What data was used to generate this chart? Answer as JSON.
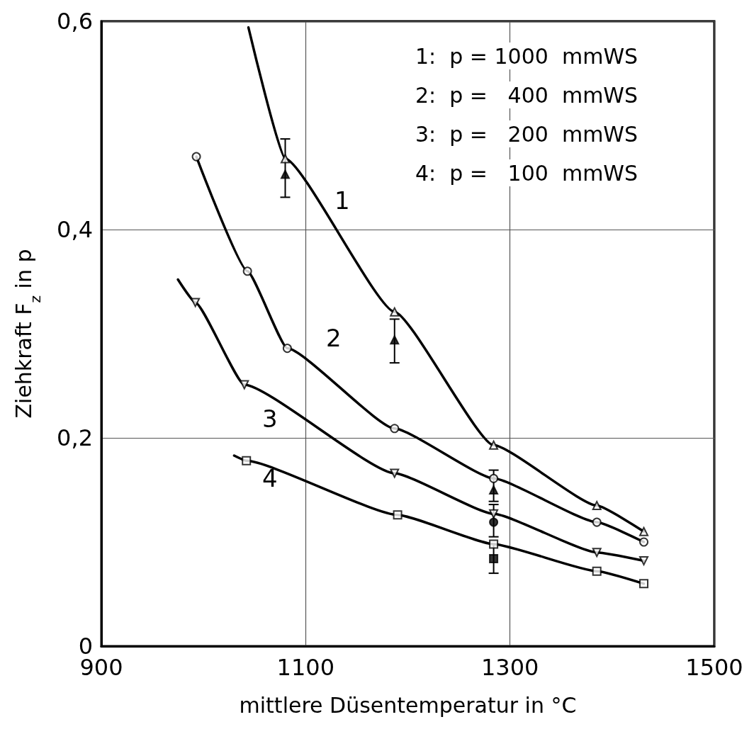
{
  "chart_data": {
    "type": "scatter",
    "xlabel": "mittlere Düsentemperatur in °C",
    "ylabel": "Ziehkraft F$_{z}$ in p",
    "xlim": [
      900,
      1500
    ],
    "xticks": [
      900,
      1100,
      1300,
      1500
    ],
    "ylim": [
      0,
      0.6
    ],
    "yticks": [
      0,
      {
        "value": 0.2,
        "label": "0,2"
      },
      {
        "value": 0.4,
        "label": "0,4"
      },
      {
        "value": 0.6,
        "label": "0,6"
      }
    ],
    "grid": true,
    "series": [
      {
        "type": "line",
        "marker": "none",
        "color": "#000000",
        "x": [
          1044,
          1080,
          1187,
          1284,
          1385,
          1431
        ],
        "values": [
          0.594,
          0.468,
          0.321,
          0.193,
          0.135,
          0.11
        ]
      },
      {
        "type": "line",
        "marker": "none",
        "color": "#000000",
        "x": [
          993,
          1043,
          1082,
          1187,
          1284,
          1385,
          1431
        ],
        "values": [
          0.47,
          0.36,
          0.286,
          0.209,
          0.161,
          0.119,
          0.1
        ]
      },
      {
        "type": "line",
        "marker": "none",
        "color": "#000000",
        "x": [
          975,
          992,
          1040,
          1187,
          1284,
          1385,
          1431
        ],
        "values": [
          0.352,
          0.33,
          0.251,
          0.166,
          0.127,
          0.09,
          0.082
        ]
      },
      {
        "type": "line",
        "marker": "none",
        "color": "#000000",
        "x": [
          1030,
          1042,
          1190,
          1284,
          1385,
          1431
        ],
        "values": [
          0.183,
          0.178,
          0.126,
          0.098,
          0.072,
          0.06
        ]
      },
      {
        "marker": "triangle",
        "color": "#ffffff",
        "x": [
          1080,
          1187,
          1284,
          1385,
          1431
        ],
        "values": [
          0.468,
          0.321,
          0.193,
          0.135,
          0.11
        ]
      },
      {
        "marker": "circle",
        "color": "#ffffff",
        "x": [
          993,
          1043,
          1082,
          1187,
          1284,
          1385,
          1431
        ],
        "values": [
          0.47,
          0.36,
          0.286,
          0.209,
          0.161,
          0.119,
          0.1
        ]
      },
      {
        "marker": "triangle-down",
        "color": "#ffffff",
        "x": [
          992,
          1040,
          1187,
          1284,
          1385,
          1431
        ],
        "values": [
          0.33,
          0.251,
          0.166,
          0.127,
          0.09,
          0.082
        ]
      },
      {
        "marker": "square",
        "color": "#ffffff",
        "x": [
          1042,
          1190,
          1284,
          1385,
          1431
        ],
        "values": [
          0.178,
          0.126,
          0.098,
          0.072,
          0.06
        ]
      },
      {
        "marker": "triangle",
        "color": "#000000",
        "x": [
          1080,
          1187,
          1284
        ],
        "values": [
          0.453,
          0.294,
          0.15
        ],
        "errors": [
          [
            0.431,
            0.487
          ],
          [
            0.272,
            0.314
          ],
          [
            0.139,
            0.169
          ]
        ]
      },
      {
        "marker": "circle",
        "color": "#000000",
        "x": [
          1284
        ],
        "values": [
          0.119
        ],
        "errors": [
          [
            0.105,
            0.136
          ]
        ]
      },
      {
        "marker": "square",
        "color": "#000000",
        "x": [
          1284
        ],
        "values": [
          0.084
        ],
        "errors": [
          [
            0.07,
            0.098
          ]
        ]
      }
    ],
    "annotations": [
      "1:  p = 1000  mmWS",
      "2:  p =   400  mmWS",
      "3:  p =   200  mmWS",
      "4:  p =   100  mmWS",
      "1",
      "2",
      "3",
      "4"
    ]
  }
}
